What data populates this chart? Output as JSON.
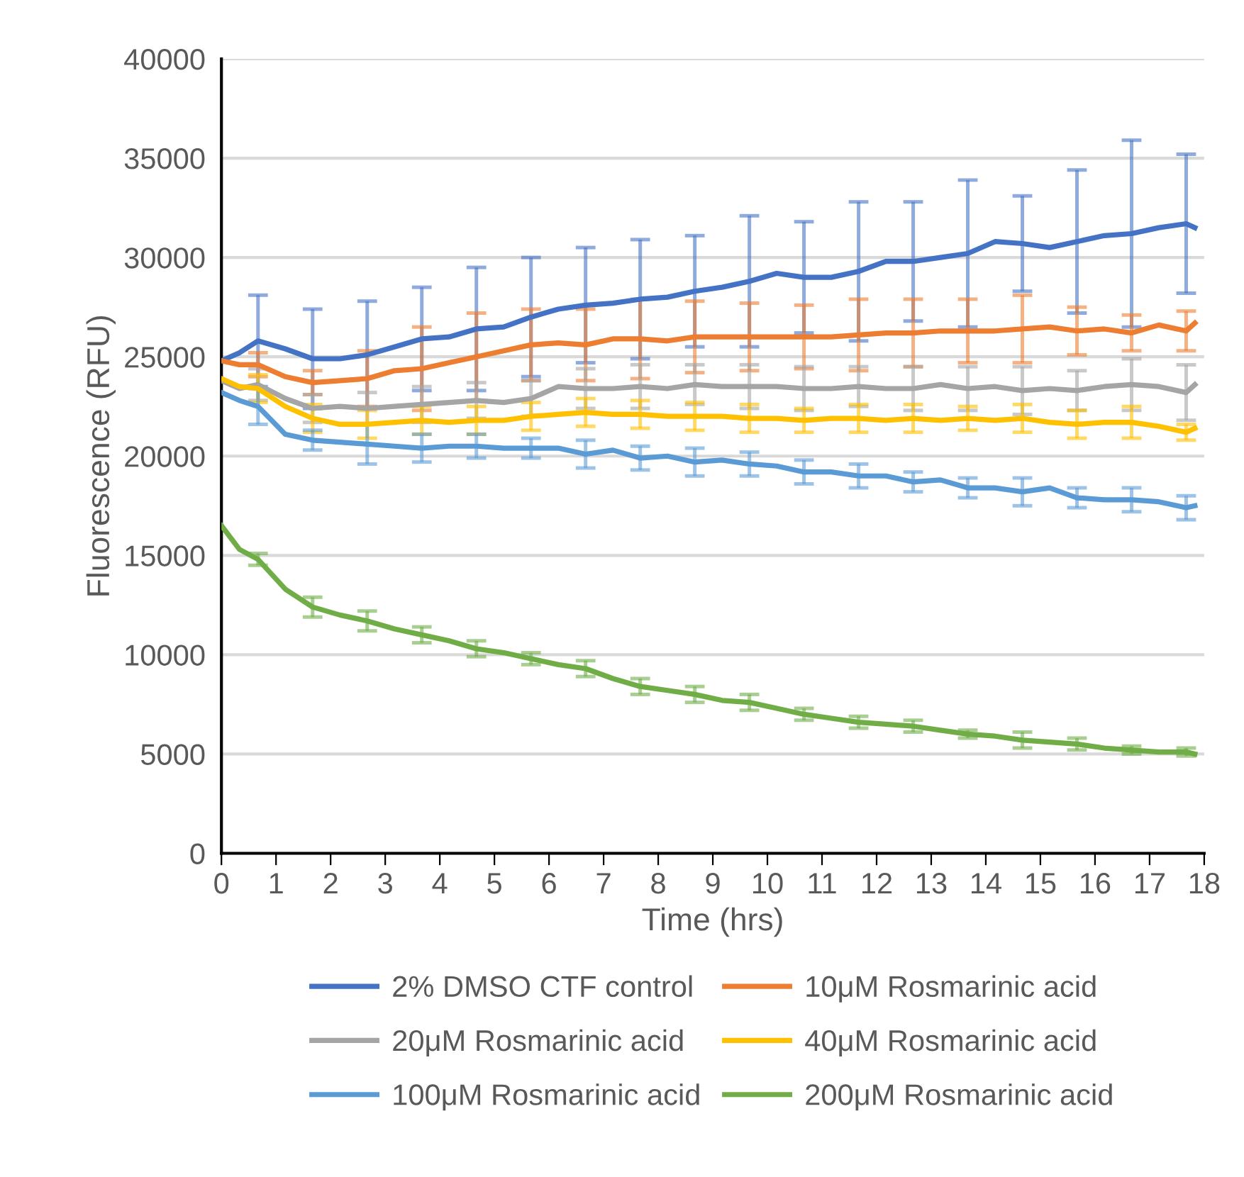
{
  "chart_data": {
    "type": "line",
    "xlabel": "Time (hrs)",
    "ylabel": "Fluorescence (RFU)",
    "x": [
      0,
      0.33,
      0.67,
      1.17,
      1.67,
      2.17,
      2.67,
      3.17,
      3.67,
      4.17,
      4.67,
      5.17,
      5.67,
      6.17,
      6.67,
      7.17,
      7.67,
      8.17,
      8.67,
      9.17,
      9.67,
      10.17,
      10.67,
      11.17,
      11.67,
      12.17,
      12.67,
      13.17,
      13.67,
      14.17,
      14.67,
      15.17,
      15.67,
      16.17,
      16.67,
      17.17,
      17.67,
      17.83
    ],
    "xlim": [
      0,
      18
    ],
    "xticks": [
      0,
      1,
      2,
      3,
      4,
      5,
      6,
      7,
      8,
      9,
      10,
      11,
      12,
      13,
      14,
      15,
      16,
      17,
      18
    ],
    "ylim": [
      0,
      40000
    ],
    "yticks": [
      0,
      5000,
      10000,
      15000,
      20000,
      25000,
      30000,
      35000,
      40000
    ],
    "grid": "y",
    "legend": "bottom",
    "marker": "none",
    "line_style": "solid",
    "series": [
      {
        "name": "2% DMSO CTF control",
        "color": "#4472c4",
        "values": [
          24800,
          25200,
          25800,
          25400,
          24900,
          24900,
          25100,
          25500,
          25900,
          26000,
          26400,
          26500,
          27000,
          27400,
          27600,
          27700,
          27900,
          28000,
          28300,
          28500,
          28800,
          29200,
          29000,
          29000,
          29300,
          29800,
          29800,
          30000,
          30200,
          30800,
          30700,
          30500,
          30800,
          31100,
          31200,
          31500,
          31700,
          31500
        ],
        "errors": [
          null,
          null,
          2300,
          null,
          2500,
          null,
          2700,
          null,
          2600,
          null,
          3100,
          null,
          3000,
          null,
          2900,
          null,
          3000,
          null,
          2800,
          null,
          3300,
          null,
          2800,
          null,
          3500,
          null,
          3000,
          null,
          3700,
          null,
          2400,
          null,
          3600,
          null,
          4700,
          null,
          3500,
          null
        ]
      },
      {
        "name": "10μM Rosmarinic acid",
        "color": "#ed7d31",
        "values": [
          24800,
          24600,
          24600,
          24000,
          23700,
          23800,
          23900,
          24300,
          24400,
          24700,
          25000,
          25300,
          25600,
          25700,
          25600,
          25900,
          25900,
          25800,
          26000,
          26000,
          26000,
          26000,
          26000,
          26000,
          26100,
          26200,
          26200,
          26300,
          26300,
          26300,
          26400,
          26500,
          26300,
          26400,
          26200,
          26600,
          26300,
          26700
        ],
        "errors": [
          null,
          null,
          600,
          null,
          600,
          null,
          1400,
          null,
          2100,
          null,
          2200,
          null,
          1800,
          null,
          1800,
          null,
          2000,
          null,
          1800,
          null,
          1700,
          null,
          1600,
          null,
          1800,
          null,
          1700,
          null,
          1600,
          null,
          1700,
          null,
          1200,
          null,
          900,
          null,
          1000,
          null
        ]
      },
      {
        "name": "20μM Rosmarinic acid",
        "color": "#a5a5a5",
        "values": [
          23800,
          23400,
          23600,
          22900,
          22400,
          22500,
          22400,
          22500,
          22600,
          22700,
          22800,
          22700,
          22900,
          23500,
          23400,
          23400,
          23500,
          23400,
          23600,
          23500,
          23500,
          23500,
          23400,
          23400,
          23500,
          23400,
          23400,
          23600,
          23400,
          23500,
          23300,
          23400,
          23300,
          23500,
          23600,
          23500,
          23200,
          23600
        ],
        "errors": [
          null,
          null,
          800,
          null,
          700,
          null,
          800,
          null,
          900,
          null,
          900,
          null,
          900,
          null,
          1000,
          null,
          1100,
          null,
          1000,
          null,
          1100,
          null,
          1100,
          null,
          1000,
          null,
          1100,
          null,
          1100,
          null,
          1200,
          null,
          1000,
          null,
          1300,
          null,
          1400,
          null
        ]
      },
      {
        "name": "40μM Rosmarinic acid",
        "color": "#ffc000",
        "values": [
          23900,
          23500,
          23400,
          22500,
          21900,
          21600,
          21600,
          21700,
          21800,
          21700,
          21800,
          21800,
          22000,
          22100,
          22200,
          22100,
          22100,
          22000,
          22000,
          22000,
          21900,
          21900,
          21800,
          21900,
          21900,
          21800,
          21900,
          21800,
          21900,
          21800,
          21900,
          21700,
          21600,
          21700,
          21700,
          21500,
          21200,
          21400
        ],
        "errors": [
          null,
          null,
          700,
          null,
          700,
          null,
          700,
          null,
          700,
          null,
          700,
          null,
          700,
          null,
          700,
          null,
          700,
          null,
          700,
          null,
          700,
          null,
          600,
          null,
          700,
          null,
          700,
          null,
          600,
          null,
          700,
          null,
          700,
          null,
          800,
          null,
          400,
          null
        ]
      },
      {
        "name": "100μM Rosmarinic acid",
        "color": "#5b9bd5",
        "values": [
          23200,
          22800,
          22500,
          21100,
          20800,
          20700,
          20600,
          20500,
          20400,
          20500,
          20500,
          20400,
          20400,
          20400,
          20100,
          20300,
          19900,
          20000,
          19700,
          19800,
          19600,
          19500,
          19200,
          19200,
          19000,
          19000,
          18700,
          18800,
          18400,
          18400,
          18200,
          18400,
          17900,
          17800,
          17800,
          17700,
          17400,
          17500
        ],
        "errors": [
          null,
          null,
          900,
          null,
          500,
          null,
          1000,
          null,
          700,
          null,
          600,
          null,
          500,
          null,
          700,
          null,
          600,
          null,
          700,
          null,
          600,
          null,
          600,
          null,
          600,
          null,
          500,
          null,
          500,
          null,
          700,
          null,
          500,
          null,
          600,
          null,
          600,
          null
        ]
      },
      {
        "name": "200μM Rosmarinic acid",
        "color": "#70ad47",
        "values": [
          16500,
          15300,
          14800,
          13300,
          12400,
          12000,
          11700,
          11300,
          11000,
          10700,
          10300,
          10100,
          9800,
          9500,
          9300,
          8800,
          8400,
          8200,
          8000,
          7700,
          7600,
          7300,
          7000,
          6800,
          6600,
          6500,
          6400,
          6200,
          6000,
          5900,
          5700,
          5600,
          5500,
          5300,
          5200,
          5100,
          5100,
          5000
        ],
        "errors": [
          null,
          null,
          300,
          null,
          500,
          null,
          500,
          null,
          400,
          null,
          400,
          null,
          300,
          null,
          400,
          null,
          400,
          null,
          400,
          null,
          400,
          null,
          300,
          null,
          300,
          null,
          300,
          null,
          200,
          null,
          400,
          null,
          300,
          null,
          200,
          null,
          200,
          null
        ]
      }
    ]
  }
}
